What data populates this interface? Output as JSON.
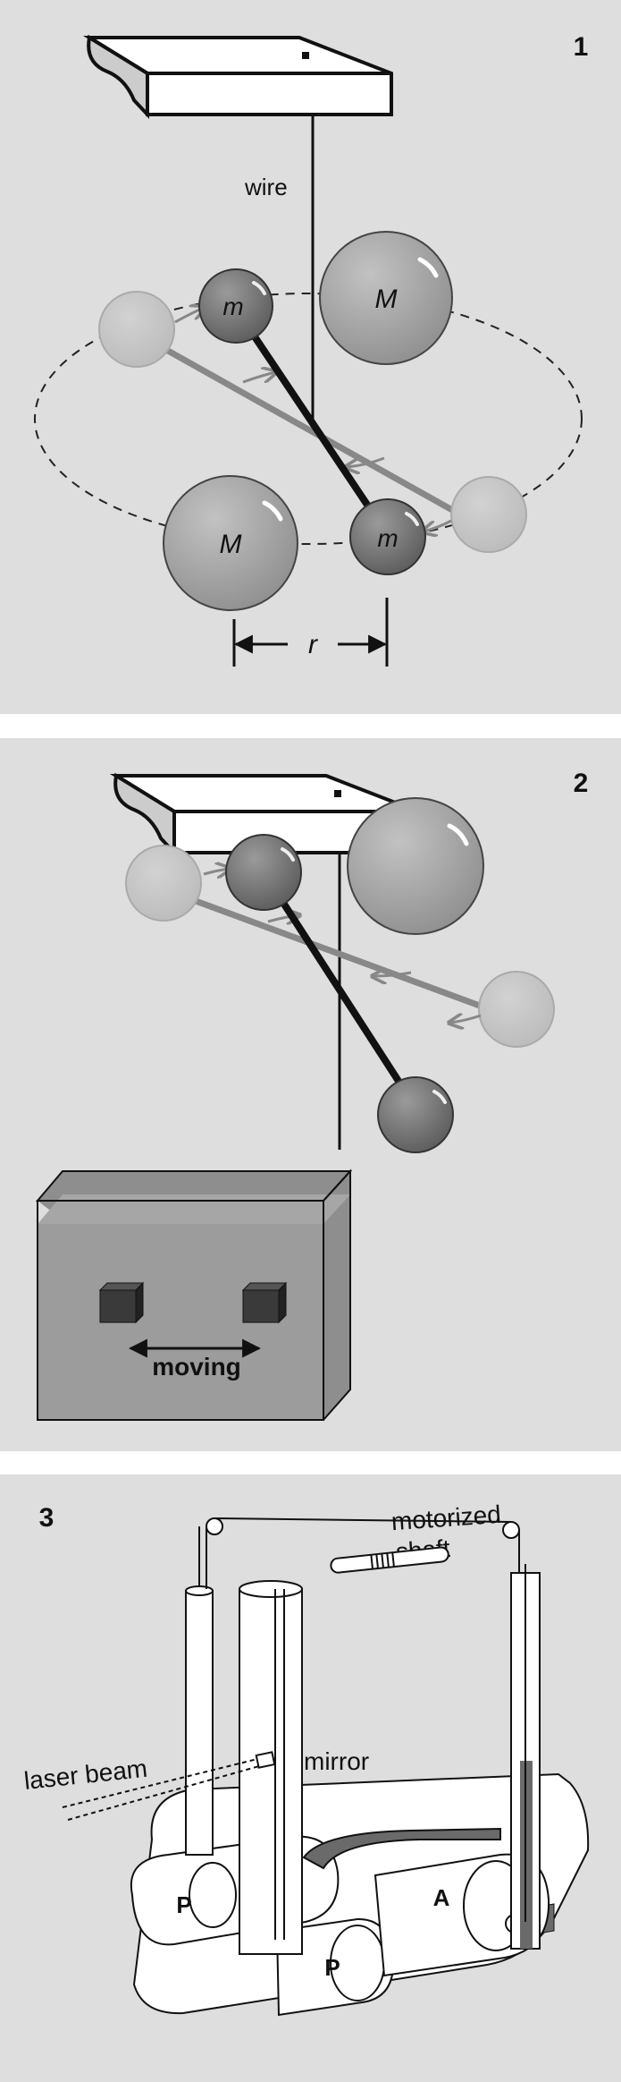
{
  "panels": [
    {
      "number": "1",
      "labels": {
        "wire": "wire",
        "small_mass": "m",
        "large_mass": "M",
        "distance": "r"
      }
    },
    {
      "number": "2",
      "labels": {
        "moving": "moving"
      }
    },
    {
      "number": "3",
      "labels": {
        "motorized_shaft_line1": "motorized",
        "motorized_shaft_line2": "shaft",
        "laser_beam": "laser beam",
        "mirror": "mirror",
        "p": "P",
        "a": "A"
      }
    }
  ],
  "colors": {
    "panel_bg": "#dedede",
    "sphere_dark": "#6e6e6e",
    "sphere_mid": "#9a9a9a",
    "sphere_ghost": "#c4c4c4",
    "water": "#9c9c9c",
    "fluid": "#6a6a6a"
  }
}
